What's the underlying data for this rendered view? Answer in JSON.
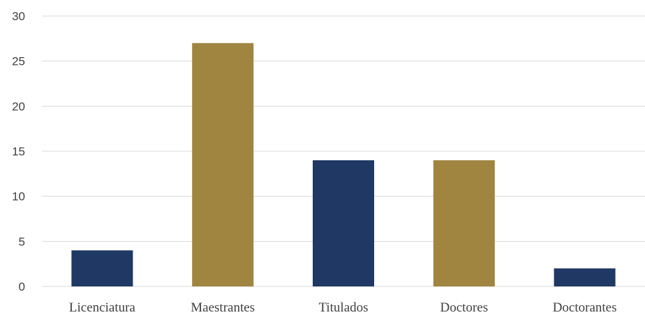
{
  "chart_data": {
    "type": "bar",
    "title": "",
    "xlabel": "",
    "ylabel": "",
    "categories": [
      "Licenciatura",
      "Maestrantes",
      "Titulados",
      "Doctores",
      "Doctorantes"
    ],
    "values": [
      4,
      27,
      14,
      14,
      2
    ],
    "colors": [
      "#1f3864",
      "#a08541",
      "#1f3864",
      "#a08541",
      "#1f3864"
    ],
    "ylim": [
      0,
      30
    ],
    "yticks": [
      "0",
      "5",
      "10",
      "15",
      "20",
      "25",
      "30"
    ],
    "ytick_values": [
      0,
      5,
      10,
      15,
      20,
      25,
      30
    ],
    "grid": true,
    "legend": "none"
  }
}
